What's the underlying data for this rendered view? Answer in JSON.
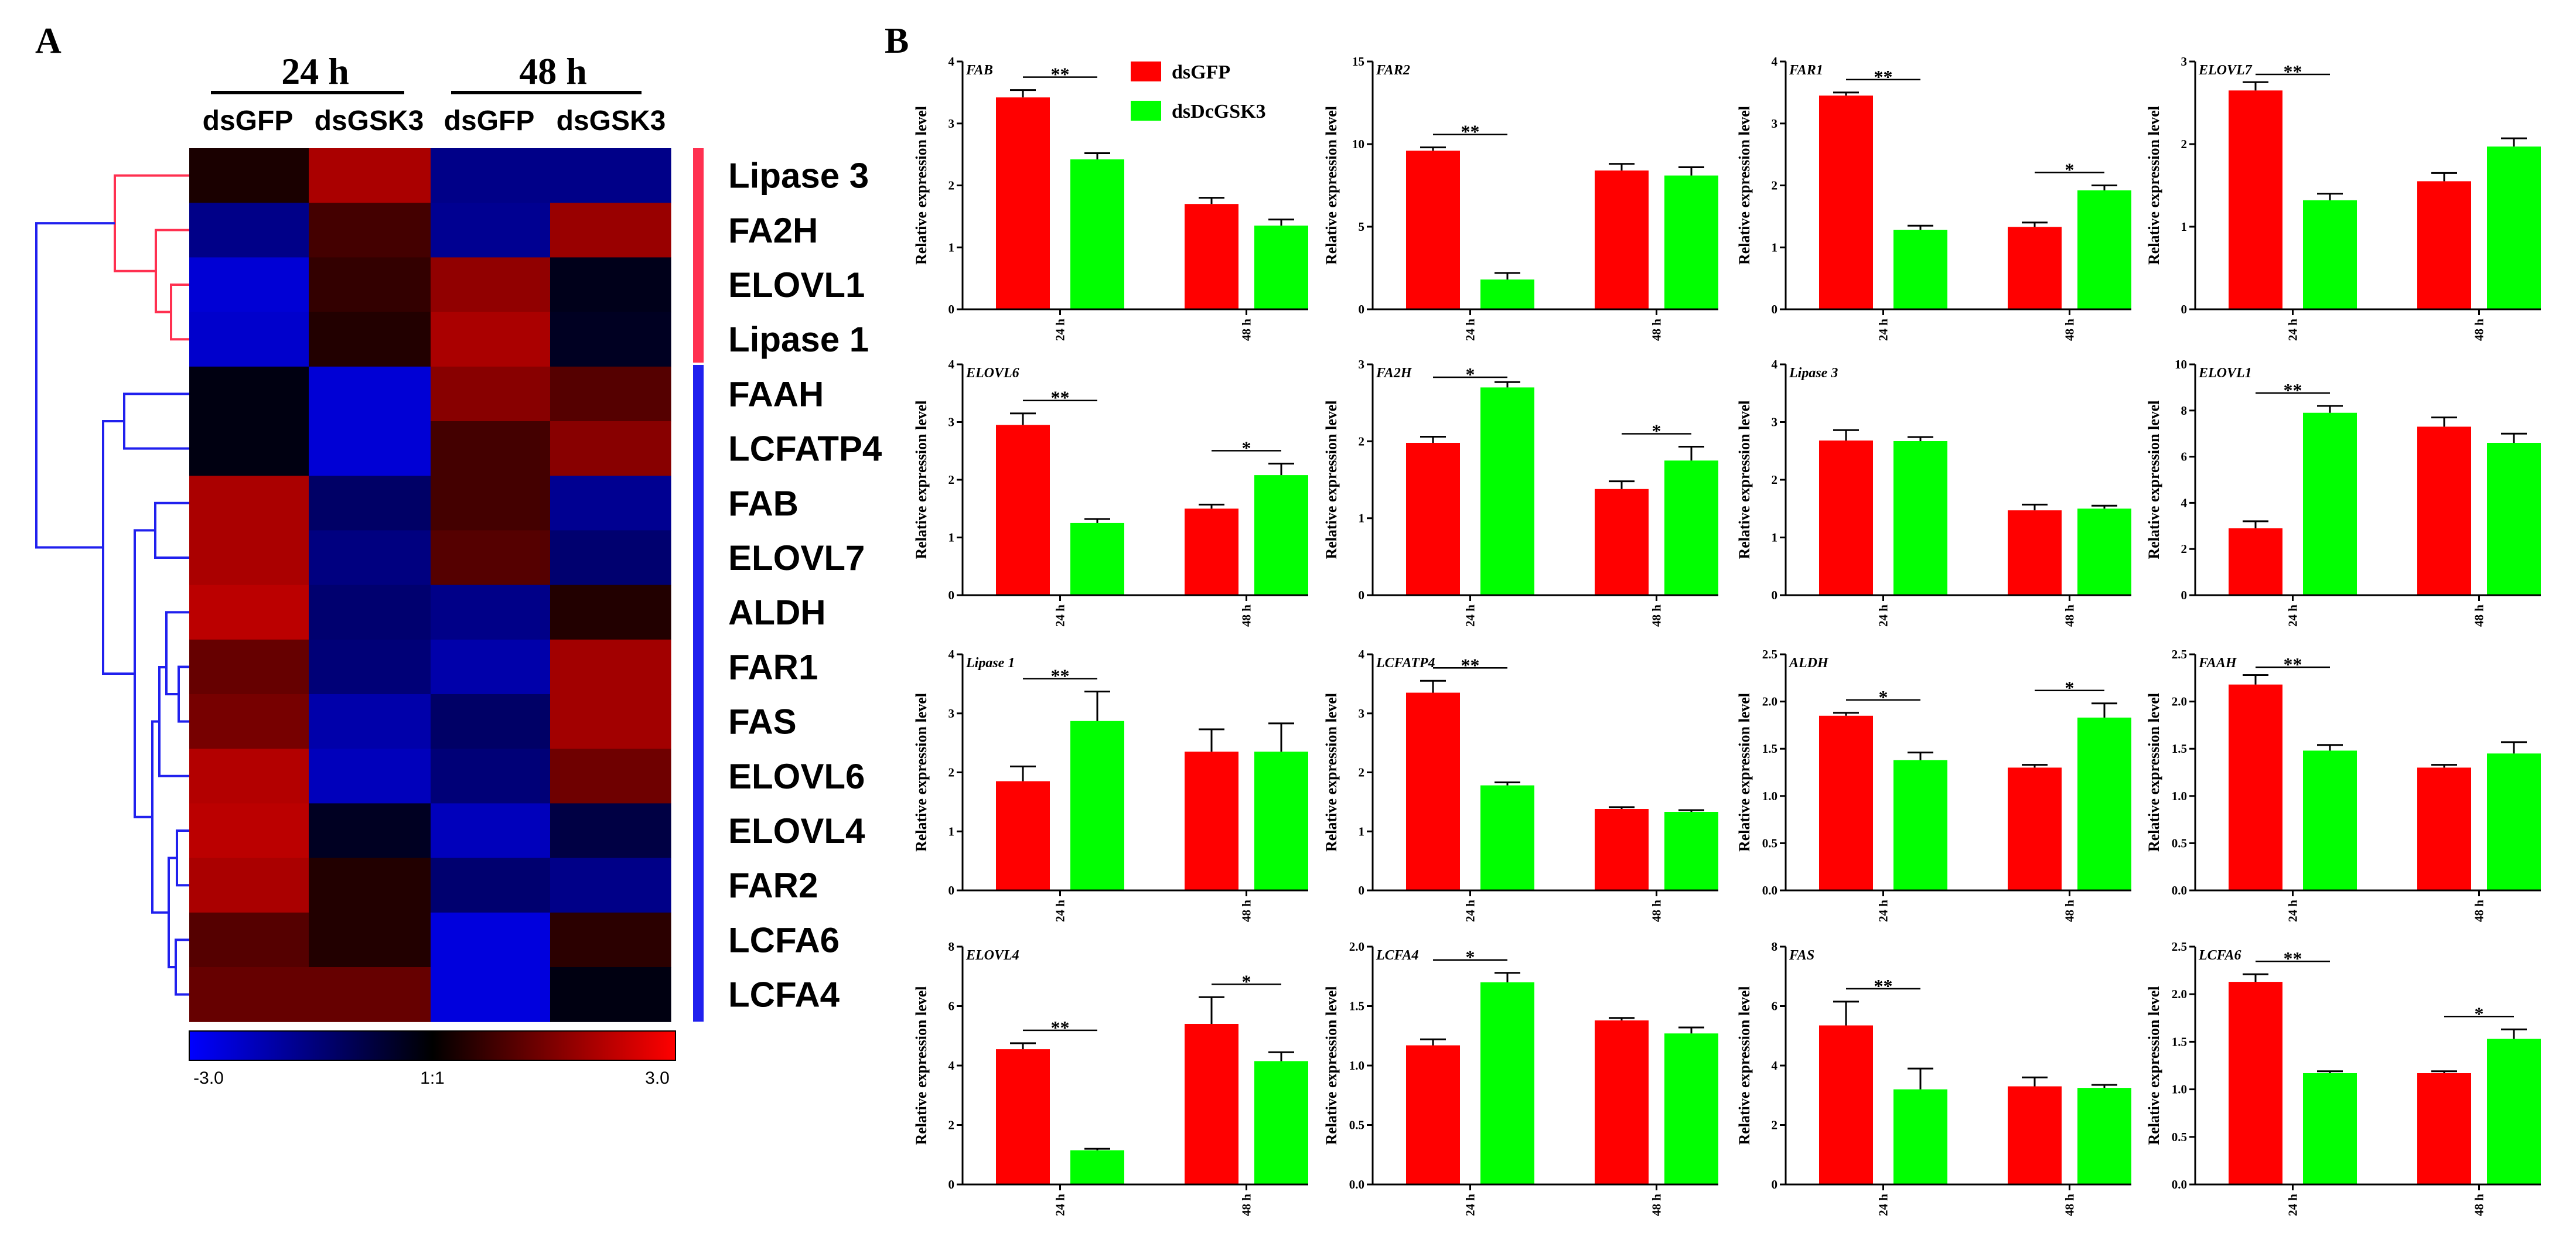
{
  "panel_labels": {
    "a": "A",
    "b": "B"
  },
  "colors": {
    "dsGFP": "#ff0000",
    "dsDcGSK3": "#00ff00",
    "cluster_red": "#ff3050",
    "cluster_blue": "#2020ee",
    "heat_low": "#0000ff",
    "heat_mid": "#000000",
    "heat_high": "#ff0000"
  },
  "heatmap": {
    "time_headers": [
      "24 h",
      "48 h"
    ],
    "columns": [
      "dsGFP",
      "dsGSK3",
      "dsGFP",
      "dsGSK3"
    ],
    "genes": [
      "Lipase 3",
      "FA2H",
      "ELOVL1",
      "Lipase 1",
      "FAAH",
      "LCFATP4",
      "FAB",
      "ELOVL7",
      "ALDH",
      "FAR1",
      "FAS",
      "ELOVL6",
      "ELOVL4",
      "FAR2",
      "LCFA6",
      "LCFA4"
    ],
    "values": [
      [
        0.3,
        2.0,
        -1.6,
        -1.6
      ],
      [
        -1.6,
        0.8,
        -1.7,
        1.8
      ],
      [
        -2.5,
        0.6,
        1.7,
        -0.3
      ],
      [
        -2.4,
        0.4,
        2.0,
        -0.4
      ],
      [
        -0.2,
        -2.5,
        1.6,
        1.0
      ],
      [
        -0.2,
        -2.5,
        0.8,
        1.6
      ],
      [
        2.0,
        -1.2,
        0.8,
        -1.7
      ],
      [
        2.0,
        -1.5,
        1.0,
        -1.3
      ],
      [
        2.2,
        -1.3,
        -1.6,
        0.4
      ],
      [
        1.2,
        -1.4,
        -2.0,
        1.9
      ],
      [
        1.4,
        -2.0,
        -1.2,
        1.9
      ],
      [
        2.1,
        -2.2,
        -1.4,
        1.3
      ],
      [
        2.2,
        -0.4,
        -2.2,
        -0.8
      ],
      [
        2.0,
        0.4,
        -1.3,
        -1.6
      ],
      [
        1.0,
        0.4,
        -2.6,
        0.5
      ],
      [
        1.2,
        1.2,
        -2.6,
        -0.2
      ]
    ],
    "color_scale": {
      "min_label": "-3.0",
      "mid_label": "1:1",
      "max_label": "3.0",
      "min": -3,
      "max": 3
    },
    "clusters": [
      {
        "name": "cluster-red",
        "gene_count": 4
      },
      {
        "name": "cluster-blue",
        "gene_count": 12
      }
    ]
  },
  "legend": {
    "items": [
      "dsGFP",
      "dsDcGSK3"
    ]
  },
  "chart_data": [
    {
      "type": "bar",
      "title": "FAB",
      "ylabel": "Relative expression level",
      "categories": [
        "24 h",
        "48 h"
      ],
      "ylim": [
        0,
        4
      ],
      "yticks": [
        "0",
        "1",
        "2",
        "3",
        "4"
      ],
      "series": [
        {
          "name": "dsGFP",
          "values": [
            3.42,
            1.7
          ],
          "errors": [
            0.12,
            0.1
          ]
        },
        {
          "name": "dsDcGSK3",
          "values": [
            2.42,
            1.35
          ],
          "errors": [
            0.1,
            0.1
          ]
        }
      ],
      "annotations": [
        {
          "group": 0,
          "label": "**"
        }
      ]
    },
    {
      "type": "bar",
      "title": "FAR2",
      "ylabel": "Relative expression level",
      "categories": [
        "24 h",
        "48 h"
      ],
      "ylim": [
        0,
        15
      ],
      "yticks": [
        "0",
        "5",
        "10",
        "15"
      ],
      "series": [
        {
          "name": "dsGFP",
          "values": [
            9.6,
            8.4
          ],
          "errors": [
            0.2,
            0.4
          ]
        },
        {
          "name": "dsDcGSK3",
          "values": [
            1.8,
            8.1
          ],
          "errors": [
            0.4,
            0.5
          ]
        }
      ],
      "annotations": [
        {
          "group": 0,
          "label": "**"
        }
      ]
    },
    {
      "type": "bar",
      "title": "FAR1",
      "ylabel": "Relative expression level",
      "categories": [
        "24 h",
        "48 h"
      ],
      "ylim": [
        0,
        4
      ],
      "yticks": [
        "0",
        "1",
        "2",
        "3",
        "4"
      ],
      "series": [
        {
          "name": "dsGFP",
          "values": [
            3.45,
            1.33
          ],
          "errors": [
            0.05,
            0.07
          ]
        },
        {
          "name": "dsDcGSK3",
          "values": [
            1.28,
            1.92
          ],
          "errors": [
            0.07,
            0.08
          ]
        }
      ],
      "annotations": [
        {
          "group": 0,
          "label": "**"
        },
        {
          "group": 1,
          "label": "*"
        }
      ]
    },
    {
      "type": "bar",
      "title": "ELOVL7",
      "ylabel": "Relative expression level",
      "categories": [
        "24 h",
        "48 h"
      ],
      "ylim": [
        0,
        3
      ],
      "yticks": [
        "0",
        "1",
        "2",
        "3"
      ],
      "series": [
        {
          "name": "dsGFP",
          "values": [
            2.65,
            1.55
          ],
          "errors": [
            0.1,
            0.1
          ]
        },
        {
          "name": "dsDcGSK3",
          "values": [
            1.32,
            1.97
          ],
          "errors": [
            0.08,
            0.1
          ]
        }
      ],
      "annotations": [
        {
          "group": 0,
          "label": "**"
        }
      ]
    },
    {
      "type": "bar",
      "title": "ELOVL6",
      "ylabel": "Relative expression level",
      "categories": [
        "24 h",
        "48 h"
      ],
      "ylim": [
        0,
        4
      ],
      "yticks": [
        "0",
        "1",
        "2",
        "3",
        "4"
      ],
      "series": [
        {
          "name": "dsGFP",
          "values": [
            2.95,
            1.5
          ],
          "errors": [
            0.2,
            0.07
          ]
        },
        {
          "name": "dsDcGSK3",
          "values": [
            1.25,
            2.08
          ],
          "errors": [
            0.07,
            0.2
          ]
        }
      ],
      "annotations": [
        {
          "group": 0,
          "label": "**"
        },
        {
          "group": 1,
          "label": "*"
        }
      ]
    },
    {
      "type": "bar",
      "title": "FA2H",
      "ylabel": "Relative expression level",
      "categories": [
        "24 h",
        "48 h"
      ],
      "ylim": [
        0,
        3
      ],
      "yticks": [
        "0",
        "1",
        "2",
        "3"
      ],
      "series": [
        {
          "name": "dsGFP",
          "values": [
            1.98,
            1.38
          ],
          "errors": [
            0.08,
            0.1
          ]
        },
        {
          "name": "dsDcGSK3",
          "values": [
            2.7,
            1.75
          ],
          "errors": [
            0.07,
            0.18
          ]
        }
      ],
      "annotations": [
        {
          "group": 0,
          "label": "*"
        },
        {
          "group": 1,
          "label": "*"
        }
      ]
    },
    {
      "type": "bar",
      "title": "Lipase 3",
      "ylabel": "Relative expression level",
      "categories": [
        "24 h",
        "48 h"
      ],
      "ylim": [
        0,
        4
      ],
      "yticks": [
        "0",
        "1",
        "2",
        "3",
        "4"
      ],
      "series": [
        {
          "name": "dsGFP",
          "values": [
            2.68,
            1.47
          ],
          "errors": [
            0.18,
            0.1
          ]
        },
        {
          "name": "dsDcGSK3",
          "values": [
            2.67,
            1.5
          ],
          "errors": [
            0.07,
            0.05
          ]
        }
      ],
      "annotations": []
    },
    {
      "type": "bar",
      "title": "ELOVL1",
      "ylabel": "Relative expression level",
      "categories": [
        "24 h",
        "48 h"
      ],
      "ylim": [
        0,
        10
      ],
      "yticks": [
        "0",
        "2",
        "4",
        "6",
        "8",
        "10"
      ],
      "series": [
        {
          "name": "dsGFP",
          "values": [
            2.9,
            7.3
          ],
          "errors": [
            0.3,
            0.4
          ]
        },
        {
          "name": "dsDcGSK3",
          "values": [
            7.9,
            6.6
          ],
          "errors": [
            0.3,
            0.4
          ]
        }
      ],
      "annotations": [
        {
          "group": 0,
          "label": "**"
        }
      ]
    },
    {
      "type": "bar",
      "title": "Lipase 1",
      "ylabel": "Relative expression level",
      "categories": [
        "24 h",
        "48 h"
      ],
      "ylim": [
        0,
        4
      ],
      "yticks": [
        "0",
        "1",
        "2",
        "3",
        "4"
      ],
      "series": [
        {
          "name": "dsGFP",
          "values": [
            1.85,
            2.35
          ],
          "errors": [
            0.25,
            0.38
          ]
        },
        {
          "name": "dsDcGSK3",
          "values": [
            2.87,
            2.35
          ],
          "errors": [
            0.5,
            0.48
          ]
        }
      ],
      "annotations": [
        {
          "group": 0,
          "label": "**"
        }
      ]
    },
    {
      "type": "bar",
      "title": "LCFATP4",
      "ylabel": "Relative expression level",
      "categories": [
        "24 h",
        "48 h"
      ],
      "ylim": [
        0,
        4
      ],
      "yticks": [
        "0",
        "1",
        "2",
        "3",
        "4"
      ],
      "series": [
        {
          "name": "dsGFP",
          "values": [
            3.35,
            1.38
          ],
          "errors": [
            0.2,
            0.03
          ]
        },
        {
          "name": "dsDcGSK3",
          "values": [
            1.78,
            1.33
          ],
          "errors": [
            0.05,
            0.03
          ]
        }
      ],
      "annotations": [
        {
          "group": 0,
          "label": "**"
        }
      ]
    },
    {
      "type": "bar",
      "title": "ALDH",
      "ylabel": "Relative expression level",
      "categories": [
        "24 h",
        "48 h"
      ],
      "ylim": [
        0,
        2.5
      ],
      "yticks": [
        "0.0",
        "0.5",
        "1.0",
        "1.5",
        "2.0",
        "2.5"
      ],
      "series": [
        {
          "name": "dsGFP",
          "values": [
            1.85,
            1.3
          ],
          "errors": [
            0.03,
            0.03
          ]
        },
        {
          "name": "dsDcGSK3",
          "values": [
            1.38,
            1.83
          ],
          "errors": [
            0.08,
            0.15
          ]
        }
      ],
      "annotations": [
        {
          "group": 0,
          "label": "*"
        },
        {
          "group": 1,
          "label": "*"
        }
      ]
    },
    {
      "type": "bar",
      "title": "FAAH",
      "ylabel": "Relative expression level",
      "categories": [
        "24 h",
        "48 h"
      ],
      "ylim": [
        0,
        2.5
      ],
      "yticks": [
        "0.0",
        "0.5",
        "1.0",
        "1.5",
        "2.0",
        "2.5"
      ],
      "series": [
        {
          "name": "dsGFP",
          "values": [
            2.18,
            1.3
          ],
          "errors": [
            0.1,
            0.03
          ]
        },
        {
          "name": "dsDcGSK3",
          "values": [
            1.48,
            1.45
          ],
          "errors": [
            0.06,
            0.12
          ]
        }
      ],
      "annotations": [
        {
          "group": 0,
          "label": "**"
        }
      ]
    },
    {
      "type": "bar",
      "title": "ELOVL4",
      "ylabel": "Relative expression level",
      "categories": [
        "24 h",
        "48 h"
      ],
      "ylim": [
        0,
        8
      ],
      "yticks": [
        "0",
        "2",
        "4",
        "6",
        "8"
      ],
      "series": [
        {
          "name": "dsGFP",
          "values": [
            4.55,
            5.4
          ],
          "errors": [
            0.2,
            0.9
          ]
        },
        {
          "name": "dsDcGSK3",
          "values": [
            1.15,
            4.15
          ],
          "errors": [
            0.05,
            0.3
          ]
        }
      ],
      "annotations": [
        {
          "group": 0,
          "label": "**"
        },
        {
          "group": 1,
          "label": "*"
        }
      ]
    },
    {
      "type": "bar",
      "title": "LCFA4",
      "ylabel": "Relative expression level",
      "categories": [
        "24 h",
        "48 h"
      ],
      "ylim": [
        0,
        2.0
      ],
      "yticks": [
        "0.0",
        "0.5",
        "1.0",
        "1.5",
        "2.0"
      ],
      "series": [
        {
          "name": "dsGFP",
          "values": [
            1.17,
            1.38
          ],
          "errors": [
            0.05,
            0.02
          ]
        },
        {
          "name": "dsDcGSK3",
          "values": [
            1.7,
            1.27
          ],
          "errors": [
            0.08,
            0.05
          ]
        }
      ],
      "annotations": [
        {
          "group": 0,
          "label": "*"
        }
      ]
    },
    {
      "type": "bar",
      "title": "FAS",
      "ylabel": "Relative expression level",
      "categories": [
        "24 h",
        "48 h"
      ],
      "ylim": [
        0,
        8
      ],
      "yticks": [
        "0",
        "2",
        "4",
        "6",
        "8"
      ],
      "series": [
        {
          "name": "dsGFP",
          "values": [
            5.35,
            3.3
          ],
          "errors": [
            0.8,
            0.3
          ]
        },
        {
          "name": "dsDcGSK3",
          "values": [
            3.2,
            3.25
          ],
          "errors": [
            0.7,
            0.1
          ]
        }
      ],
      "annotations": [
        {
          "group": 0,
          "label": "**"
        }
      ]
    },
    {
      "type": "bar",
      "title": "LCFA6",
      "ylabel": "Relative expression level",
      "categories": [
        "24 h",
        "48 h"
      ],
      "ylim": [
        0,
        2.5
      ],
      "yticks": [
        "0.0",
        "0.5",
        "1.0",
        "1.5",
        "2.0",
        "2.5"
      ],
      "series": [
        {
          "name": "dsGFP",
          "values": [
            2.13,
            1.17
          ],
          "errors": [
            0.08,
            0.02
          ]
        },
        {
          "name": "dsDcGSK3",
          "values": [
            1.17,
            1.53
          ],
          "errors": [
            0.02,
            0.1
          ]
        }
      ],
      "annotations": [
        {
          "group": 0,
          "label": "**"
        },
        {
          "group": 1,
          "label": "*"
        }
      ]
    }
  ]
}
